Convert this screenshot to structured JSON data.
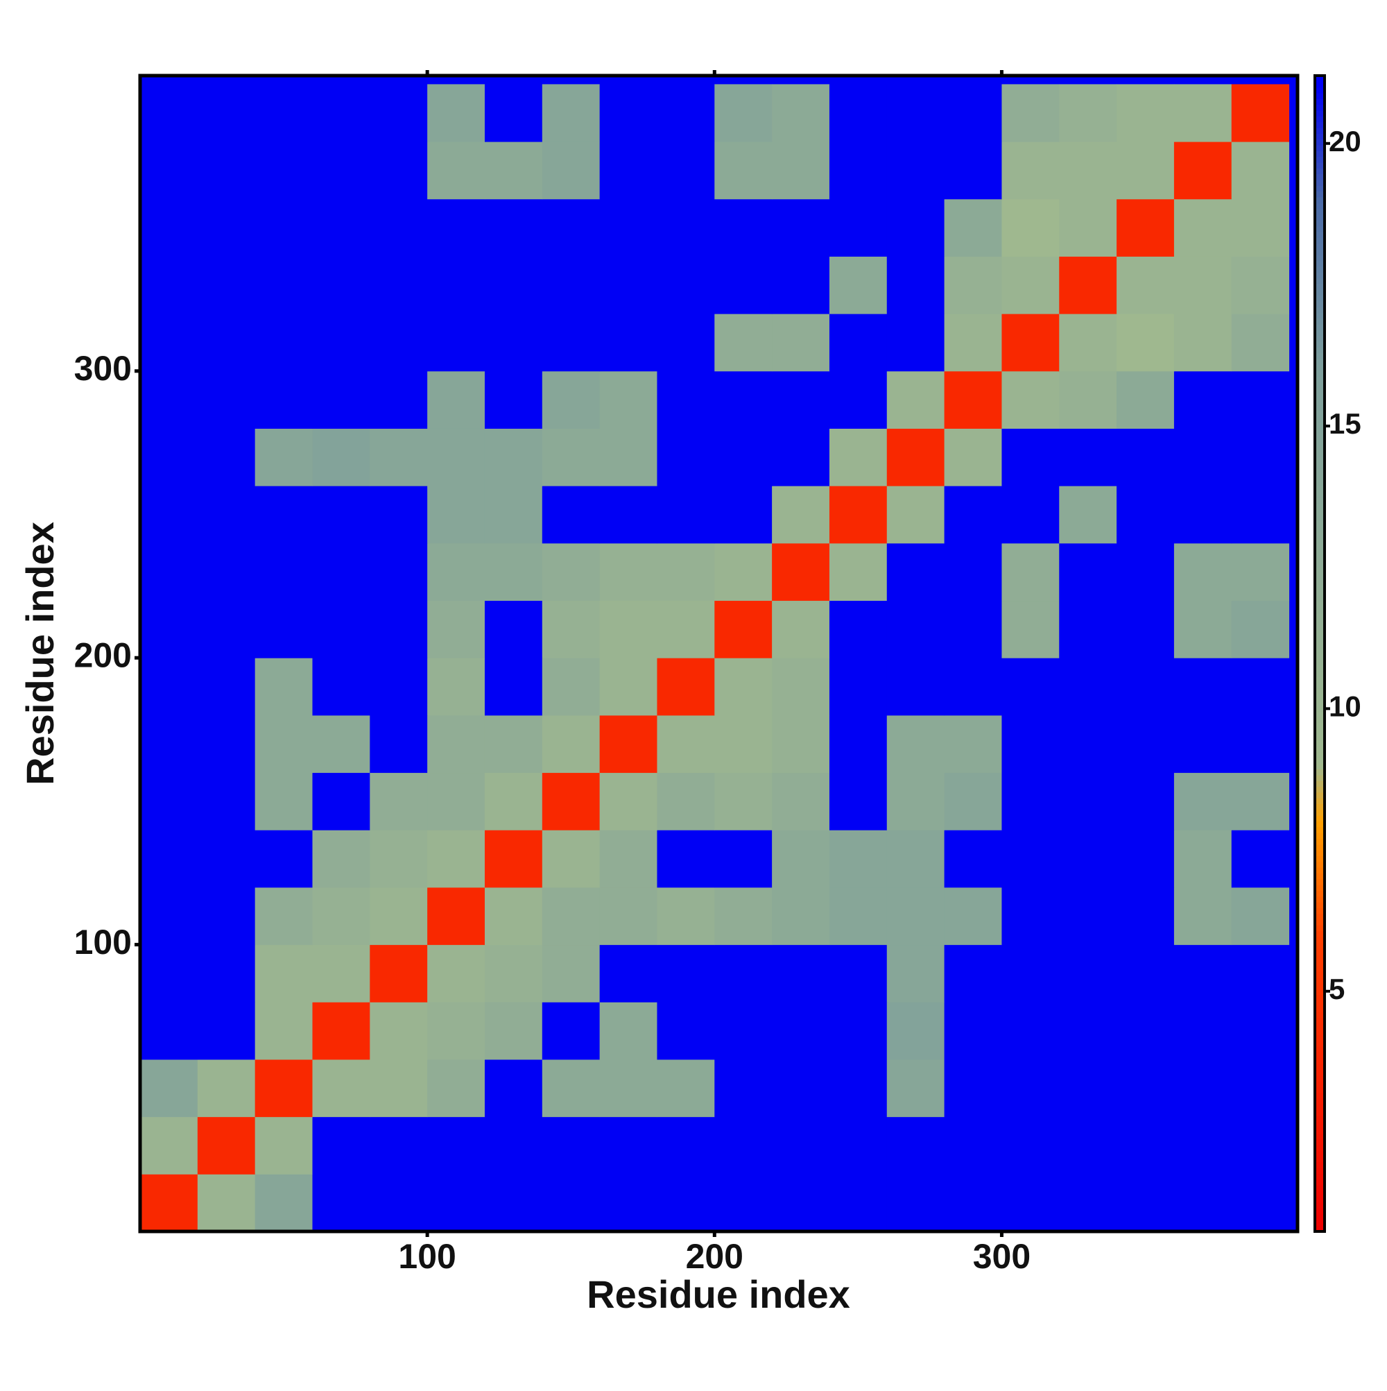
{
  "chart_data": {
    "type": "heatmap",
    "xlabel": "Residue index",
    "ylabel": "Residue index",
    "xlim": [
      0,
      403
    ],
    "ylim": [
      0,
      403
    ],
    "xticks": [
      100,
      200,
      300
    ],
    "yticks": [
      100,
      200,
      300
    ],
    "xbins": [
      0,
      20,
      40,
      60,
      80,
      100,
      120,
      140,
      160,
      180,
      200,
      220,
      240,
      260,
      280,
      300,
      320,
      340,
      360,
      380,
      400
    ],
    "ybins": [
      0,
      20,
      40,
      60,
      80,
      100,
      120,
      140,
      160,
      180,
      200,
      220,
      240,
      260,
      280,
      300,
      320,
      340,
      360,
      380,
      400
    ],
    "z": [
      [
        4,
        10,
        14,
        21,
        21,
        21,
        21,
        21,
        21,
        21,
        21,
        21,
        21,
        21,
        21,
        21,
        21,
        21,
        21,
        21
      ],
      [
        10,
        4,
        10,
        21,
        21,
        21,
        21,
        21,
        21,
        21,
        21,
        21,
        21,
        21,
        21,
        21,
        21,
        21,
        21,
        21
      ],
      [
        14,
        10,
        4,
        10,
        10,
        12,
        21,
        13,
        13,
        13,
        21,
        21,
        21,
        14,
        21,
        21,
        21,
        21,
        21,
        21
      ],
      [
        21,
        21,
        10,
        4,
        10,
        11,
        12,
        21,
        13,
        21,
        21,
        21,
        21,
        15,
        21,
        21,
        21,
        21,
        21,
        21
      ],
      [
        21,
        21,
        10,
        10,
        4,
        10,
        11,
        12,
        21,
        21,
        21,
        21,
        21,
        14,
        21,
        21,
        21,
        21,
        21,
        21
      ],
      [
        21,
        21,
        12,
        11,
        10,
        4,
        10,
        12,
        12,
        11,
        12,
        13,
        14,
        14,
        14,
        21,
        21,
        21,
        13,
        14
      ],
      [
        21,
        21,
        21,
        12,
        11,
        10,
        4,
        10,
        12,
        21,
        21,
        13,
        14,
        14,
        21,
        21,
        21,
        21,
        13,
        21
      ],
      [
        21,
        21,
        13,
        21,
        12,
        12,
        10,
        4,
        10,
        12,
        11,
        12,
        21,
        13,
        14,
        21,
        21,
        21,
        14,
        14
      ],
      [
        21,
        21,
        13,
        13,
        21,
        12,
        12,
        10,
        4,
        10,
        10,
        11,
        21,
        13,
        13,
        21,
        21,
        21,
        21,
        21
      ],
      [
        21,
        21,
        13,
        21,
        21,
        11,
        21,
        12,
        10,
        4,
        10,
        11,
        21,
        21,
        21,
        21,
        21,
        21,
        21,
        21
      ],
      [
        21,
        21,
        21,
        21,
        21,
        12,
        21,
        11,
        10,
        10,
        4,
        10,
        21,
        21,
        21,
        12,
        21,
        21,
        13,
        14
      ],
      [
        21,
        21,
        21,
        21,
        21,
        13,
        13,
        12,
        11,
        11,
        10,
        4,
        10,
        21,
        21,
        12,
        21,
        21,
        13,
        13
      ],
      [
        21,
        21,
        21,
        21,
        21,
        14,
        14,
        21,
        21,
        21,
        21,
        10,
        4,
        10,
        21,
        21,
        13,
        21,
        21,
        21
      ],
      [
        21,
        21,
        14,
        15,
        14,
        14,
        14,
        13,
        13,
        21,
        21,
        21,
        10,
        4,
        10,
        21,
        21,
        21,
        21,
        21
      ],
      [
        21,
        21,
        21,
        21,
        21,
        14,
        21,
        14,
        13,
        21,
        21,
        21,
        21,
        10,
        4,
        10,
        11,
        13,
        21,
        21
      ],
      [
        21,
        21,
        21,
        21,
        21,
        21,
        21,
        21,
        21,
        21,
        12,
        12,
        21,
        21,
        10,
        4,
        10,
        9,
        10,
        12
      ],
      [
        21,
        21,
        21,
        21,
        21,
        21,
        21,
        21,
        21,
        21,
        21,
        21,
        13,
        21,
        11,
        10,
        4,
        10,
        10,
        11
      ],
      [
        21,
        21,
        21,
        21,
        21,
        21,
        21,
        21,
        21,
        21,
        21,
        21,
        21,
        21,
        13,
        9,
        10,
        4,
        10,
        10
      ],
      [
        21,
        21,
        21,
        21,
        21,
        13,
        13,
        14,
        21,
        21,
        13,
        13,
        21,
        21,
        21,
        10,
        10,
        10,
        4,
        10
      ],
      [
        21,
        21,
        21,
        21,
        21,
        14,
        21,
        14,
        21,
        21,
        14,
        13,
        21,
        21,
        21,
        12,
        11,
        10,
        10,
        4
      ]
    ],
    "clim": [
      0.75,
      21.2
    ],
    "cticks": [
      5,
      10,
      15,
      20
    ],
    "colorscale": [
      {
        "value": 0.75,
        "color": "#ee0000"
      },
      {
        "value": 6,
        "color": "#ff4000"
      },
      {
        "value": 8,
        "color": "#ffa000"
      },
      {
        "value": 9,
        "color": "#9fb88f"
      },
      {
        "value": 16,
        "color": "#7e9f9c"
      },
      {
        "value": 19,
        "color": "#4a6aa8"
      },
      {
        "value": 21,
        "color": "#0000f5"
      }
    ]
  }
}
